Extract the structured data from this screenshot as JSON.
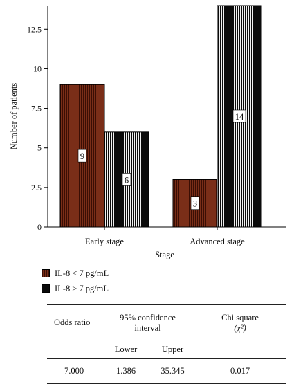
{
  "chart_data": {
    "type": "bar",
    "categories": [
      "Early stage",
      "Advanced stage"
    ],
    "series": [
      {
        "name": "IL-8 < 7 pg/mL",
        "values": [
          9,
          3
        ],
        "color": "#7a2e18",
        "pattern": "brown-vertical-stripes"
      },
      {
        "name": "IL-8 ≥ 7 pg/mL",
        "values": [
          6,
          14
        ],
        "color": "#0a0a0a",
        "pattern": "black-vertical-stripes"
      }
    ],
    "xlabel": "Stage",
    "ylabel": "Number of patients",
    "ylim": [
      0,
      14
    ],
    "yticks": [
      0,
      2.5,
      5,
      7.5,
      10,
      12.5
    ],
    "ytick_labels": [
      "0",
      "2.5",
      "5",
      "7.5",
      "10",
      "12.5"
    ],
    "data_labels": [
      [
        "9",
        "3"
      ],
      [
        "6",
        "14"
      ]
    ],
    "legend_position": "bottom-left",
    "grid": false
  },
  "stats_table": {
    "header": {
      "odds_ratio": "Odds ratio",
      "ci_line1": "95% confidence",
      "ci_line2": "interval",
      "chi_line1": "Chi square",
      "chi_line2": "(χ²)"
    },
    "subheader": {
      "lower": "Lower",
      "upper": "Upper"
    },
    "row": {
      "odds_ratio": "7.000",
      "lower": "1.386",
      "upper": "35.345",
      "chi_square": "0.017"
    }
  }
}
